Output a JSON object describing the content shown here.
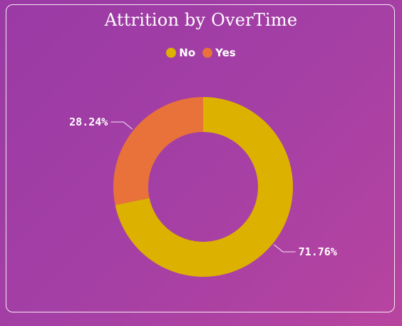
{
  "chart_data": {
    "type": "pie",
    "title": "Attrition by OverTime",
    "series": [
      {
        "name": "No",
        "value": 71.76,
        "label": "71.76%",
        "color": "#dcb100"
      },
      {
        "name": "Yes",
        "value": 28.24,
        "label": "28.24%",
        "color": "#e8723a"
      }
    ],
    "legend_position": "top-center",
    "donut": true
  }
}
